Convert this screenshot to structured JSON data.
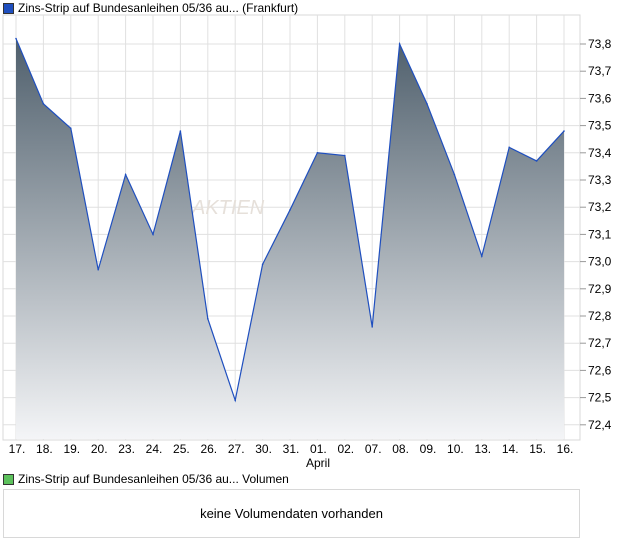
{
  "chart_data": {
    "type": "area",
    "title": "Zins-Strip auf Bundesanleihen 05/36 au... (Frankfurt)",
    "categories": [
      "17.",
      "18.",
      "19.",
      "20.",
      "23.",
      "24.",
      "25.",
      "26.",
      "27.",
      "30.",
      "31.",
      "01.",
      "02.",
      "07.",
      "08.",
      "09.",
      "10.",
      "13.",
      "14.",
      "15.",
      "16."
    ],
    "month_label": "April",
    "values": [
      73.82,
      73.58,
      73.49,
      72.97,
      73.32,
      73.1,
      73.48,
      72.79,
      72.49,
      72.99,
      73.19,
      73.4,
      73.39,
      72.76,
      73.8,
      73.58,
      73.32,
      73.02,
      73.42,
      73.37,
      73.48
    ],
    "yticks": [
      "72,4",
      "72,5",
      "72,6",
      "72,7",
      "72,8",
      "72,9",
      "73,0",
      "73,1",
      "73,2",
      "73,3",
      "73,4",
      "73,5",
      "73,6",
      "73,7",
      "73,8"
    ],
    "ylim": [
      72.35,
      73.9
    ],
    "grid": true,
    "colors": {
      "line": "#1f4fbf",
      "fill_top": "#4f5f6c",
      "fill_bottom": "#f4f5f7",
      "legend": "#1f4fbf"
    }
  },
  "volume": {
    "legend": "Zins-Strip auf Bundesanleihen 05/36 au... Volumen",
    "legend_color": "#5cc15c",
    "message": "keine Volumendaten vorhanden"
  }
}
